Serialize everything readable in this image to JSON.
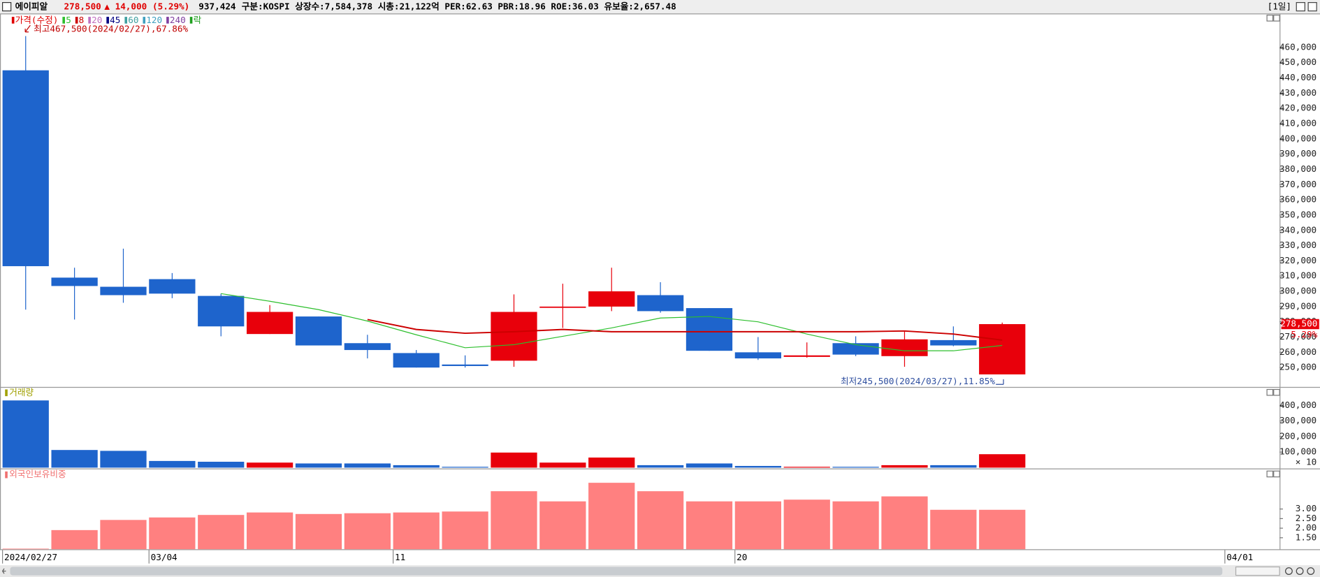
{
  "header": {
    "name": "에이피알",
    "price": "278,500",
    "change": "▲ 14,000",
    "change_pct": "(5.29%)",
    "volume": "937,424",
    "info": "구분:KOSPI 상장수:7,584,378 시총:21,122억 PER:62.63 PBR:18.96 ROE:36.03 유보율:2,657.48",
    "period": "[1일]"
  },
  "chart_data": [
    {
      "type": "candlestick",
      "legend_title": "가격(수정)",
      "legend_title_color": "#e00000",
      "categories": [
        "2024/02/27",
        null,
        null,
        "03/04",
        null,
        null,
        null,
        null,
        "11",
        null,
        null,
        null,
        null,
        null,
        null,
        "20",
        null,
        null,
        null,
        null,
        null
      ],
      "x_end_label": "04/01",
      "open": [
        445000,
        309000,
        303000,
        308000,
        297000,
        272000,
        283500,
        266000,
        259500,
        252000,
        254500,
        289500,
        290000,
        297500,
        289000,
        260000,
        257000,
        266000,
        257500,
        268000,
        245500
      ],
      "high": [
        467500,
        315500,
        328000,
        312000,
        298500,
        291000,
        283500,
        271500,
        261500,
        258000,
        298000,
        305000,
        315500,
        306000,
        289000,
        270000,
        266500,
        270500,
        274000,
        277000,
        279500
      ],
      "low": [
        288000,
        281500,
        292500,
        295500,
        270500,
        272000,
        264500,
        256000,
        250000,
        250000,
        250500,
        276000,
        287000,
        286000,
        261000,
        255000,
        256500,
        257500,
        250500,
        264000,
        245500
      ],
      "close": [
        316500,
        303500,
        297500,
        298500,
        277000,
        286500,
        264500,
        261500,
        250000,
        251000,
        286500,
        290000,
        300000,
        287000,
        261000,
        256000,
        258000,
        258500,
        268500,
        264500,
        278500
      ],
      "up_color": "#e8000b",
      "down_color": "#1e64cc",
      "series": [
        {
          "name": "5",
          "color": "#2dbf2d",
          "values": [
            null,
            null,
            null,
            null,
            298500,
            293500,
            288000,
            280500,
            271500,
            263000,
            265000,
            270500,
            276000,
            282500,
            283500,
            280000,
            272000,
            265000,
            261000,
            261000,
            264500
          ]
        },
        {
          "name": "8",
          "color": "#cc0000",
          "values": [
            null,
            null,
            null,
            null,
            null,
            null,
            null,
            281500,
            275000,
            272500,
            273500,
            275000,
            273500,
            273500,
            273500,
            273500,
            273500,
            273500,
            274000,
            272000,
            268000
          ]
        }
      ],
      "inactive_legend": [
        {
          "name": "20",
          "color": "#c070c0"
        },
        {
          "name": "45",
          "color": "#000080"
        },
        {
          "name": "60",
          "color": "#40a0a0"
        },
        {
          "name": "120",
          "color": "#40a0c0"
        },
        {
          "name": "240",
          "color": "#8040a0"
        },
        {
          "name": "락",
          "color": "#20a020"
        }
      ],
      "high_label": "최고467,500(2024/02/27),67.86%",
      "low_label": "최저245,500(2024/03/27),11.85%",
      "last_price_label": "278,500",
      "last_change_label": "5.29%",
      "ylim": [
        237300,
        481200
      ],
      "yticks": [
        {
          "value": 250000,
          "label": "250,000"
        },
        {
          "value": 260000,
          "label": "260,000"
        },
        {
          "value": 270000,
          "label": "270,000"
        },
        {
          "value": 280000,
          "label": "280,000"
        },
        {
          "value": 290000,
          "label": "290,000"
        },
        {
          "value": 300000,
          "label": "300,000"
        },
        {
          "value": 310000,
          "label": "310,000"
        },
        {
          "value": 320000,
          "label": "320,000"
        },
        {
          "value": 330000,
          "label": "330,000"
        },
        {
          "value": 340000,
          "label": "340,000"
        },
        {
          "value": 350000,
          "label": "350,000"
        },
        {
          "value": 360000,
          "label": "360,000"
        },
        {
          "value": 370000,
          "label": "370,000"
        },
        {
          "value": 380000,
          "label": "380,000"
        },
        {
          "value": 390000,
          "label": "390,000"
        },
        {
          "value": 400000,
          "label": "400,000"
        },
        {
          "value": 410000,
          "label": "410,000"
        },
        {
          "value": 420000,
          "label": "420,000"
        },
        {
          "value": 430000,
          "label": "430,000"
        },
        {
          "value": 440000,
          "label": "440,000"
        },
        {
          "value": 450000,
          "label": "450,000"
        },
        {
          "value": 460000,
          "label": "460,000"
        }
      ]
    },
    {
      "type": "bar",
      "title": "거래량",
      "title_color": "#a0a000",
      "unit_label": "× 10",
      "values": [
        432000,
        113500,
        108000,
        43000,
        38000,
        32500,
        27000,
        27000,
        16000,
        5500,
        97000,
        32500,
        65000,
        16000,
        27000,
        11000,
        5500,
        5500,
        16000,
        16000,
        86500
      ],
      "colors": [
        "#1e64cc",
        "#1e64cc",
        "#1e64cc",
        "#1e64cc",
        "#1e64cc",
        "#e8000b",
        "#1e64cc",
        "#1e64cc",
        "#1e64cc",
        "#1e64cc",
        "#e8000b",
        "#e8000b",
        "#e8000b",
        "#1e64cc",
        "#1e64cc",
        "#1e64cc",
        "#e8000b",
        "#1e64cc",
        "#e8000b",
        "#1e64cc",
        "#e8000b"
      ],
      "ylim": [
        0,
        500000
      ],
      "yticks": [
        {
          "value": 100000,
          "label": "100,000"
        },
        {
          "value": 200000,
          "label": "200,000"
        },
        {
          "value": 300000,
          "label": "300,000"
        },
        {
          "value": 400000,
          "label": "400,000"
        }
      ]
    },
    {
      "type": "bar",
      "title": "외국인보유비중",
      "title_color": "#f07070",
      "color": "#ff8080",
      "values": [
        0.93,
        1.9,
        2.43,
        2.56,
        2.69,
        2.82,
        2.74,
        2.78,
        2.82,
        2.87,
        3.93,
        3.4,
        4.37,
        3.93,
        3.4,
        3.4,
        3.49,
        3.4,
        3.66,
        2.96,
        2.96
      ],
      "ylim": [
        0.9,
        4.94
      ],
      "yticks": [
        {
          "value": 1.5,
          "label": "1.50"
        },
        {
          "value": 2,
          "label": "2.00"
        },
        {
          "value": 2.5,
          "label": "2.50"
        },
        {
          "value": 3,
          "label": "3.00"
        }
      ]
    }
  ]
}
